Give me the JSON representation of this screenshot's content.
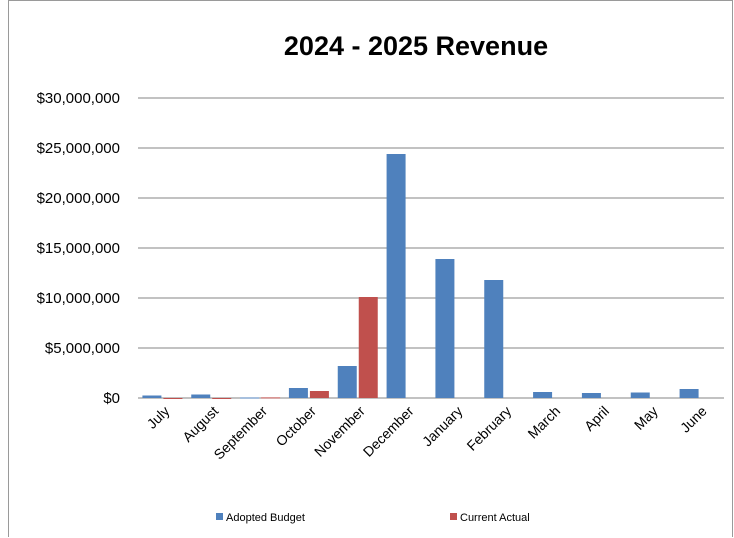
{
  "chart_data": {
    "type": "bar",
    "title": "2024 - 2025 Revenue",
    "xlabel": "",
    "ylabel": "",
    "categories": [
      "July",
      "August",
      "September",
      "October",
      "November",
      "December",
      "January",
      "February",
      "March",
      "April",
      "May",
      "June"
    ],
    "series": [
      {
        "name": "Adopted Budget",
        "color": "#4f81bd",
        "values": [
          250000,
          350000,
          50000,
          1000000,
          3200000,
          24400000,
          13900000,
          11800000,
          600000,
          500000,
          550000,
          900000
        ]
      },
      {
        "name": "Current Actual",
        "color": "#c0504d",
        "values": [
          -100000,
          -60000,
          60000,
          700000,
          10100000,
          0,
          0,
          0,
          0,
          0,
          0,
          0
        ]
      }
    ],
    "ylim": [
      0,
      30000000
    ],
    "yticks": [
      0,
      5000000,
      10000000,
      15000000,
      20000000,
      25000000,
      30000000
    ],
    "ytick_labels": [
      "$0",
      "$5,000,000",
      "$10,000,000",
      "$15,000,000",
      "$20,000,000",
      "$25,000,000",
      "$30,000,000"
    ],
    "grid": true,
    "legend_position": "bottom"
  }
}
